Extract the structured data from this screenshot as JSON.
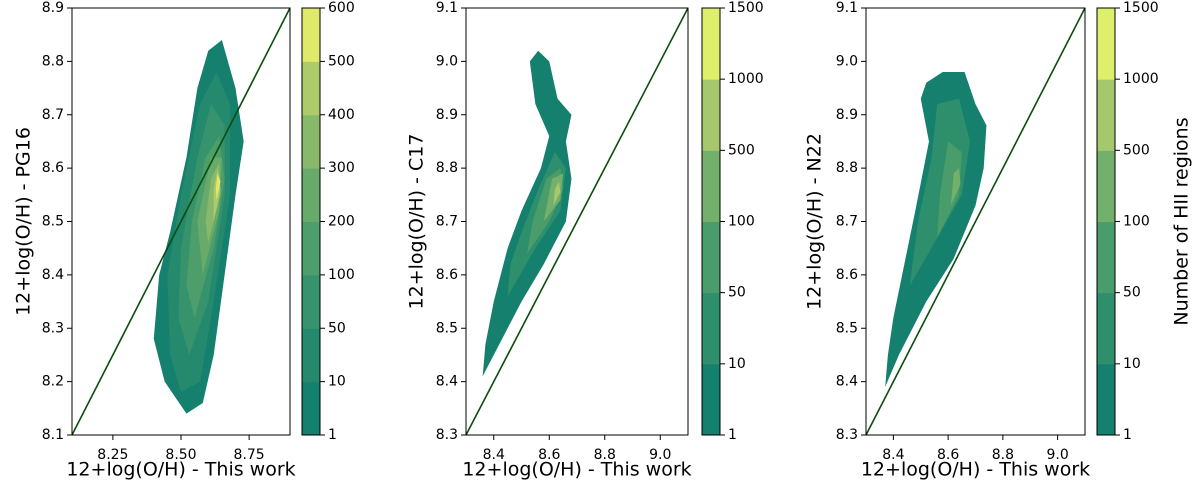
{
  "chart_data": [
    {
      "type": "contour",
      "xlabel": "12+log(O/H) - This work",
      "ylabel": "12+log(O/H) - PG16",
      "xlim": [
        8.1,
        8.9
      ],
      "xticks": [
        8.25,
        {
          "value": 8.5,
          "label": "8.50"
        },
        8.75
      ],
      "ylim": [
        8.1,
        8.9
      ],
      "yticks": [
        8.1,
        8.2,
        8.3,
        8.4,
        8.5,
        8.6,
        8.7,
        8.8,
        8.9
      ],
      "levels": [
        1,
        10,
        50,
        100,
        200,
        300,
        400,
        500,
        600
      ],
      "colors": [
        "#15806e",
        "#24896d",
        "#37936c",
        "#4e9e6b",
        "#68aa6a",
        "#88b86a",
        "#aecb6b",
        "#dfea6b"
      ],
      "contours": [
        [
          [
            8.52,
            8.14
          ],
          [
            8.58,
            8.16
          ],
          [
            8.62,
            8.25
          ],
          [
            8.66,
            8.4
          ],
          [
            8.7,
            8.55
          ],
          [
            8.73,
            8.65
          ],
          [
            8.7,
            8.75
          ],
          [
            8.65,
            8.84
          ],
          [
            8.6,
            8.82
          ],
          [
            8.56,
            8.75
          ],
          [
            8.52,
            8.62
          ],
          [
            8.46,
            8.48
          ],
          [
            8.42,
            8.4
          ],
          [
            8.4,
            8.28
          ],
          [
            8.44,
            8.2
          ]
        ],
        [
          [
            8.5,
            8.18
          ],
          [
            8.57,
            8.2
          ],
          [
            8.62,
            8.35
          ],
          [
            8.68,
            8.55
          ],
          [
            8.68,
            8.72
          ],
          [
            8.63,
            8.78
          ],
          [
            8.57,
            8.72
          ],
          [
            8.5,
            8.55
          ],
          [
            8.45,
            8.4
          ],
          [
            8.46,
            8.25
          ]
        ],
        [
          [
            8.53,
            8.25
          ],
          [
            8.6,
            8.35
          ],
          [
            8.66,
            8.55
          ],
          [
            8.66,
            8.68
          ],
          [
            8.61,
            8.72
          ],
          [
            8.56,
            8.62
          ],
          [
            8.5,
            8.45
          ],
          [
            8.49,
            8.32
          ]
        ],
        [
          [
            8.55,
            8.32
          ],
          [
            8.62,
            8.45
          ],
          [
            8.66,
            8.58
          ],
          [
            8.64,
            8.66
          ],
          [
            8.59,
            8.62
          ],
          [
            8.54,
            8.5
          ],
          [
            8.52,
            8.38
          ]
        ],
        [
          [
            8.58,
            8.4
          ],
          [
            8.64,
            8.52
          ],
          [
            8.65,
            8.62
          ],
          [
            8.61,
            8.62
          ],
          [
            8.56,
            8.5
          ]
        ],
        [
          [
            8.6,
            8.46
          ],
          [
            8.645,
            8.55
          ],
          [
            8.64,
            8.61
          ],
          [
            8.61,
            8.58
          ],
          [
            8.59,
            8.5
          ]
        ],
        [
          [
            8.62,
            8.5
          ],
          [
            8.645,
            8.56
          ],
          [
            8.635,
            8.6
          ],
          [
            8.62,
            8.56
          ]
        ],
        [
          [
            8.63,
            8.54
          ],
          [
            8.645,
            8.575
          ],
          [
            8.635,
            8.59
          ],
          [
            8.628,
            8.565
          ]
        ]
      ]
    },
    {
      "type": "contour",
      "xlabel": "12+log(O/H) - This work",
      "ylabel": "12+log(O/H) - C17",
      "xlim": [
        8.3,
        9.1
      ],
      "xticks": [
        8.4,
        8.6,
        8.8,
        {
          "value": 9,
          "label": "9.0"
        }
      ],
      "ylim": [
        8.3,
        9.1
      ],
      "yticks": [
        8.3,
        8.4,
        8.5,
        8.6,
        8.7,
        8.8,
        8.9,
        {
          "value": 9,
          "label": "9.0"
        },
        9.1
      ],
      "levels": [
        1,
        10,
        50,
        100,
        500,
        1000,
        1500
      ],
      "colors": [
        "#15806e",
        "#2e8f6c",
        "#4a9d6b",
        "#73b06b",
        "#a6c86c",
        "#def06b"
      ],
      "contours": [
        [
          [
            8.36,
            8.41
          ],
          [
            8.4,
            8.45
          ],
          [
            8.5,
            8.55
          ],
          [
            8.58,
            8.62
          ],
          [
            8.66,
            8.7
          ],
          [
            8.68,
            8.78
          ],
          [
            8.66,
            8.85
          ],
          [
            8.68,
            8.9
          ],
          [
            8.63,
            8.93
          ],
          [
            8.6,
            9.0
          ],
          [
            8.56,
            9.02
          ],
          [
            8.53,
            9.0
          ],
          [
            8.55,
            8.92
          ],
          [
            8.6,
            8.86
          ],
          [
            8.57,
            8.8
          ],
          [
            8.5,
            8.72
          ],
          [
            8.45,
            8.65
          ],
          [
            8.4,
            8.55
          ],
          [
            8.37,
            8.47
          ]
        ],
        [
          [
            8.45,
            8.56
          ],
          [
            8.55,
            8.65
          ],
          [
            8.64,
            8.72
          ],
          [
            8.66,
            8.8
          ],
          [
            8.62,
            8.83
          ],
          [
            8.56,
            8.76
          ],
          [
            8.5,
            8.68
          ],
          [
            8.46,
            8.62
          ]
        ],
        [
          [
            8.52,
            8.64
          ],
          [
            8.6,
            8.7
          ],
          [
            8.65,
            8.76
          ],
          [
            8.64,
            8.8
          ],
          [
            8.59,
            8.78
          ],
          [
            8.54,
            8.7
          ]
        ],
        [
          [
            8.58,
            8.7
          ],
          [
            8.64,
            8.74
          ],
          [
            8.65,
            8.79
          ],
          [
            8.61,
            8.78
          ]
        ],
        [
          [
            8.615,
            8.73
          ],
          [
            8.64,
            8.755
          ],
          [
            8.635,
            8.775
          ],
          [
            8.62,
            8.76
          ]
        ]
      ]
    },
    {
      "type": "contour",
      "xlabel": "12+log(O/H) - This work",
      "ylabel": "12+log(O/H) - N22",
      "colorbar_label": "Number of HII regions",
      "xlim": [
        8.3,
        9.1
      ],
      "xticks": [
        8.4,
        8.6,
        8.8,
        {
          "value": 9,
          "label": "9.0"
        }
      ],
      "ylim": [
        8.3,
        9.1
      ],
      "yticks": [
        8.3,
        8.4,
        8.5,
        8.6,
        8.7,
        8.8,
        8.9,
        {
          "value": 9,
          "label": "9.0"
        },
        9.1
      ],
      "levels": [
        1,
        10,
        50,
        100,
        500,
        1000,
        1500
      ],
      "colors": [
        "#15806e",
        "#2e8f6c",
        "#4a9d6b",
        "#73b06b",
        "#a6c86c",
        "#def06b"
      ],
      "contours": [
        [
          [
            8.37,
            8.39
          ],
          [
            8.42,
            8.45
          ],
          [
            8.52,
            8.55
          ],
          [
            8.62,
            8.63
          ],
          [
            8.7,
            8.73
          ],
          [
            8.73,
            8.8
          ],
          [
            8.74,
            8.88
          ],
          [
            8.7,
            8.92
          ],
          [
            8.66,
            8.98
          ],
          [
            8.58,
            8.98
          ],
          [
            8.52,
            8.96
          ],
          [
            8.5,
            8.93
          ],
          [
            8.53,
            8.85
          ],
          [
            8.48,
            8.72
          ],
          [
            8.44,
            8.62
          ],
          [
            8.4,
            8.52
          ],
          [
            8.38,
            8.45
          ]
        ],
        [
          [
            8.46,
            8.58
          ],
          [
            8.55,
            8.66
          ],
          [
            8.65,
            8.75
          ],
          [
            8.68,
            8.85
          ],
          [
            8.64,
            8.93
          ],
          [
            8.56,
            8.92
          ],
          [
            8.54,
            8.82
          ],
          [
            8.49,
            8.7
          ]
        ],
        [
          [
            8.56,
            8.67
          ],
          [
            8.64,
            8.75
          ],
          [
            8.65,
            8.83
          ],
          [
            8.6,
            8.85
          ],
          [
            8.57,
            8.75
          ]
        ],
        [
          [
            8.61,
            8.73
          ],
          [
            8.645,
            8.77
          ],
          [
            8.64,
            8.8
          ],
          [
            8.62,
            8.79
          ]
        ]
      ]
    }
  ]
}
